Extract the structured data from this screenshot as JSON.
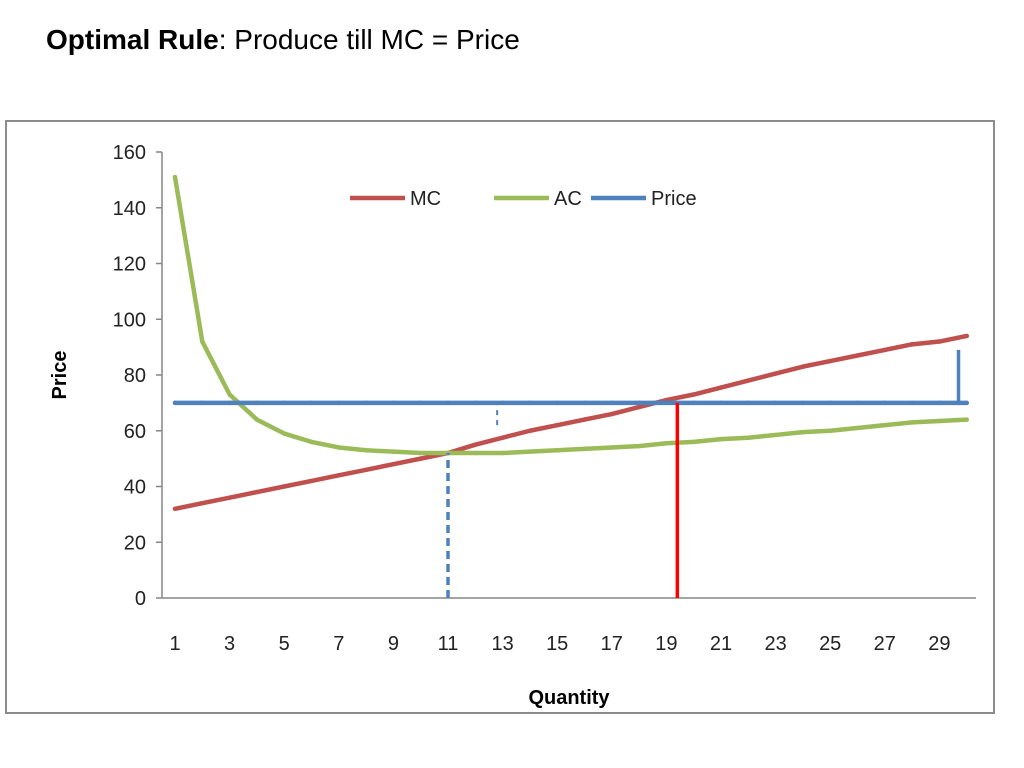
{
  "header": {
    "bold": "Optimal Rule",
    "rest": ":  Produce till MC = Price"
  },
  "chart_data": {
    "type": "line",
    "xlabel": "Quantity",
    "ylabel": "Price",
    "ylim": [
      0,
      160
    ],
    "yticks": [
      "0",
      "20",
      "40",
      "60",
      "80",
      "100",
      "120",
      "140",
      "160"
    ],
    "x": [
      1,
      2,
      3,
      4,
      5,
      6,
      7,
      8,
      9,
      10,
      11,
      12,
      13,
      14,
      15,
      16,
      17,
      18,
      19,
      20,
      21,
      22,
      23,
      24,
      25,
      26,
      27,
      28,
      29,
      30
    ],
    "xtick_labels": [
      "1",
      "3",
      "5",
      "7",
      "9",
      "11",
      "13",
      "15",
      "17",
      "19",
      "21",
      "23",
      "25",
      "27",
      "29"
    ],
    "legend_position": "top-center",
    "grid": false,
    "series": [
      {
        "name": "MC",
        "color": "#c0504d",
        "values": [
          32,
          34,
          36,
          38,
          40,
          42,
          44,
          46,
          48,
          50,
          52,
          55,
          57.5,
          60,
          62,
          64,
          66,
          68.5,
          71,
          73,
          75.5,
          78,
          80.5,
          83,
          85,
          87,
          89,
          91,
          92,
          94
        ]
      },
      {
        "name": "AC",
        "color": "#9bbb59",
        "values": [
          151,
          92,
          73,
          64,
          59,
          56,
          54,
          53,
          52.5,
          52,
          52,
          52,
          52,
          52.5,
          53,
          53.5,
          54,
          54.5,
          55.5,
          56,
          57,
          57.5,
          58.5,
          59.5,
          60,
          61,
          62,
          63,
          63.5,
          64
        ]
      },
      {
        "name": "Price",
        "color": "#4f81bd",
        "values": [
          70,
          70,
          70,
          70,
          70,
          70,
          70,
          70,
          70,
          70,
          70,
          70,
          70,
          70,
          70,
          70,
          70,
          70,
          70,
          70,
          70,
          70,
          70,
          70,
          70,
          70,
          70,
          70,
          70,
          70
        ]
      }
    ],
    "annotations": [
      {
        "kind": "vertical-dashed",
        "x": 11,
        "y_from": 0,
        "y_to": 52,
        "color": "#4f81bd"
      },
      {
        "kind": "vertical-dashed",
        "x": 12.8,
        "y_from": 62,
        "y_to": 70,
        "color": "#4f81bd"
      },
      {
        "kind": "vertical-solid",
        "x": 19.4,
        "y_from": 0,
        "y_to": 70,
        "color": "#ff0000"
      },
      {
        "kind": "vertical-solid",
        "x": 29.7,
        "y_from": 70,
        "y_to": 89,
        "color": "#4f81bd"
      }
    ]
  }
}
